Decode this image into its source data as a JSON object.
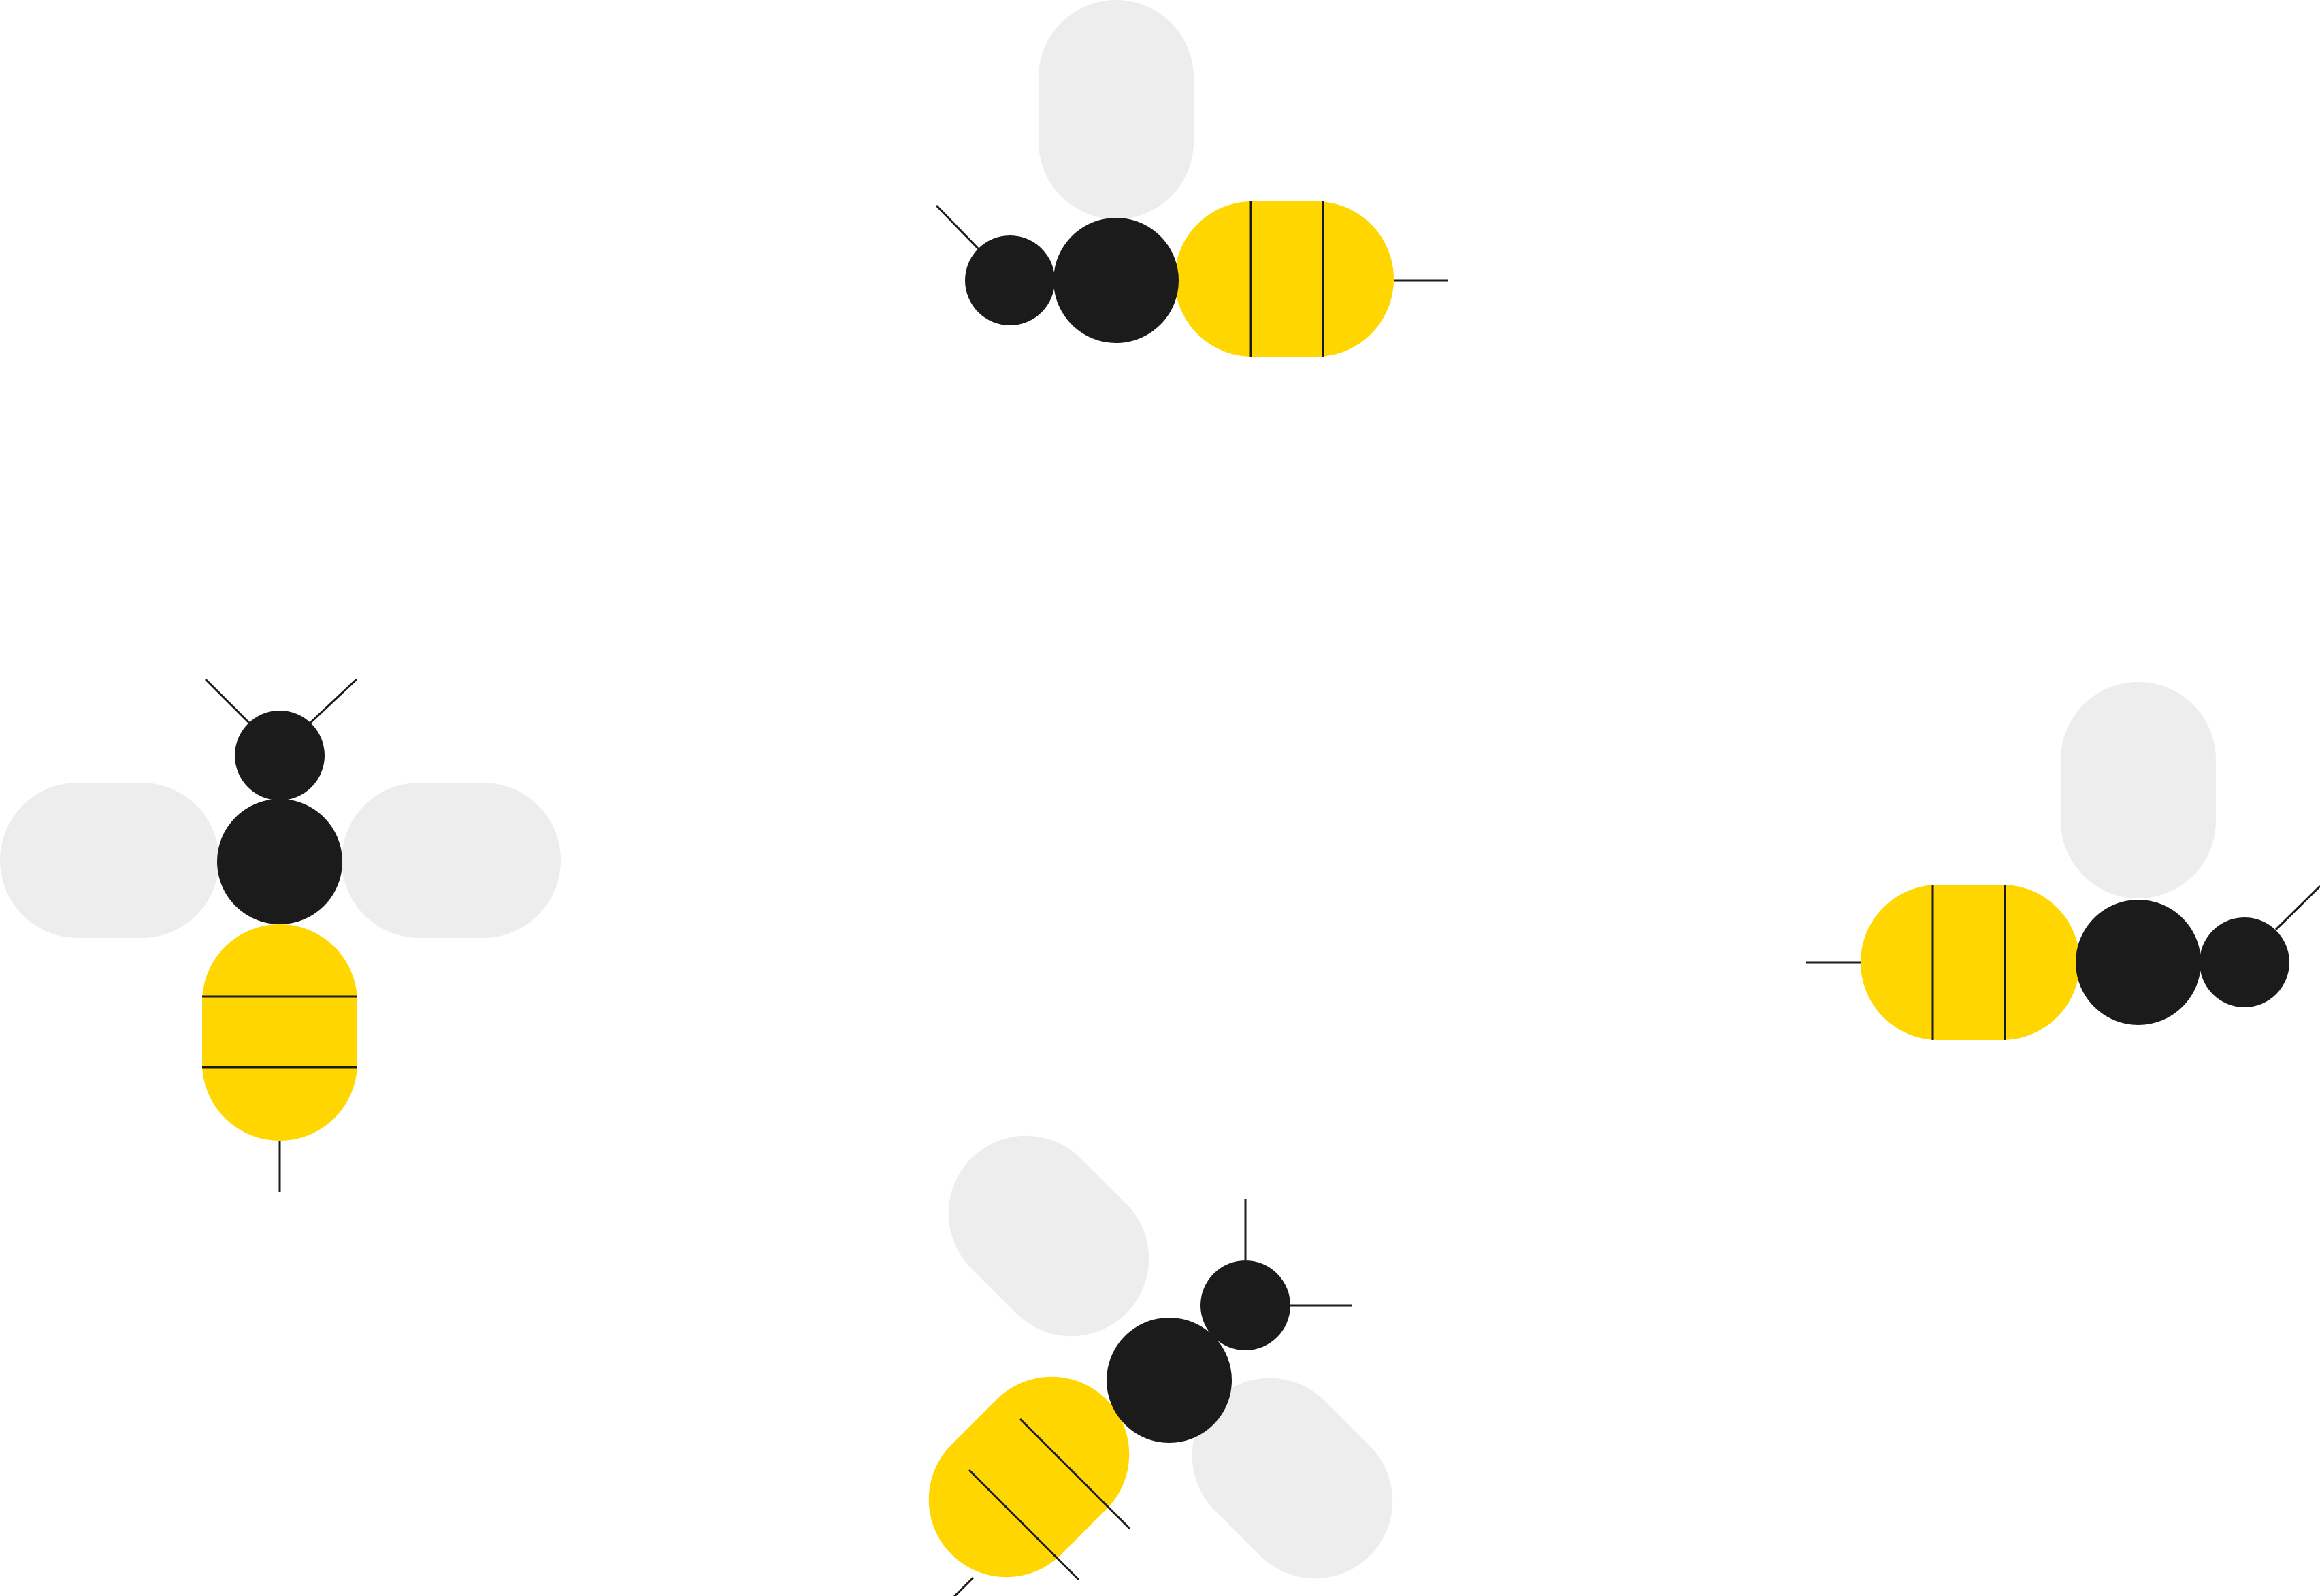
{
  "colors": {
    "background": "#ffffff",
    "wing": "#ededed",
    "body": "#1c1b1b",
    "abdomen": "#ffd600",
    "line": "#1c1b1b"
  },
  "bees": [
    {
      "name": "bee-top",
      "heading": "left",
      "wing_count": 1
    },
    {
      "name": "bee-left",
      "heading": "up",
      "wing_count": 2
    },
    {
      "name": "bee-right",
      "heading": "right",
      "wing_count": 1
    },
    {
      "name": "bee-bottom",
      "heading": "up-right",
      "wing_count": 2
    }
  ]
}
